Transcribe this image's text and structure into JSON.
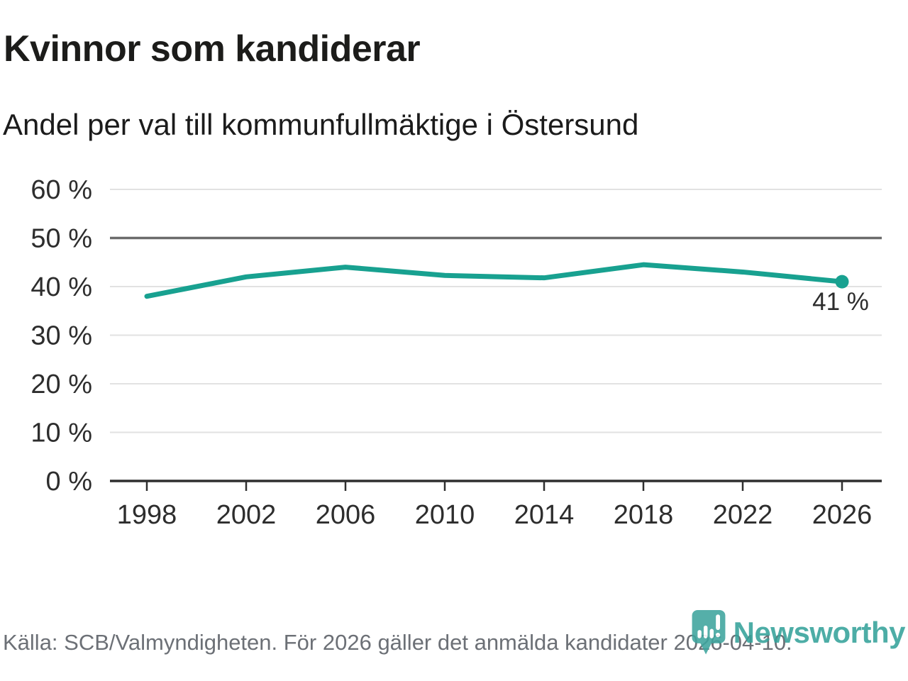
{
  "chart_data": {
    "type": "line",
    "title": "Kvinnor som kandiderar",
    "subtitle": "Andel per val till kommunfullmäktige i Östersund",
    "x": [
      1998,
      2002,
      2006,
      2010,
      2014,
      2018,
      2022,
      2026
    ],
    "x_tick_labels": [
      "1998",
      "2002",
      "2006",
      "2010",
      "2014",
      "2018",
      "2022",
      "2026"
    ],
    "series": [
      {
        "values": [
          38,
          42,
          44,
          42.3,
          41.8,
          44.5,
          43,
          41
        ]
      }
    ],
    "unit": "%",
    "ylim": [
      0,
      60
    ],
    "y_ticks": [
      0,
      10,
      20,
      30,
      40,
      50,
      60
    ],
    "y_tick_labels": [
      "0 %",
      "10 %",
      "20 %",
      "30 %",
      "40 %",
      "50 %",
      "60 %"
    ],
    "reference_line": 50,
    "end_label": "41 %",
    "grid": true,
    "legend": "none",
    "line_color": "#18a190",
    "gridline_color": "#e2e2e2",
    "reference_line_color": "#6b6b6b",
    "axis_color": "#2f2f2f",
    "label_color": "#2d2d2d"
  },
  "footer": {
    "source": "Källa: SCB/Valmyndigheten. För 2026 gäller det anmälda kandidater 2026-04-10.",
    "logo_text": "Newsworthy",
    "logo_color": "#35a29a"
  }
}
